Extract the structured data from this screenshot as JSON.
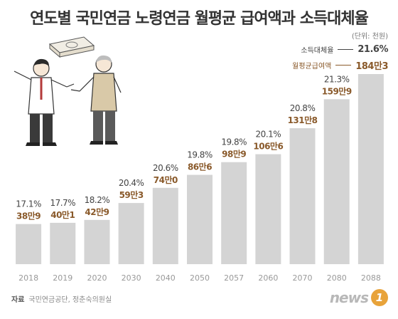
{
  "title": "연도별 국민연금 노령연금 월평균 급여액과 소득대체율",
  "unit": "(단위: 천원)",
  "legend": {
    "replacement_label": "소득대체율",
    "replacement_value": "21.6%",
    "benefit_label": "월평균급여액",
    "benefit_value": "184만3"
  },
  "source": {
    "label": "자료",
    "text": "국민연금공단, 정춘숙의원실"
  },
  "logo": {
    "text": "news",
    "badge": "1"
  },
  "colors": {
    "bar": "#d4d4d4",
    "replacement_text": "#444444",
    "benefit_text": "#8a5a2b",
    "axis_text": "#999999",
    "logo_badge": "#e8a33a"
  },
  "illustration": "two-men-talking-with-money-stack",
  "chart_data": {
    "type": "bar",
    "title": "연도별 국민연금 노령연금 월평균 급여액과 소득대체율",
    "unit": "(단위: 천원)",
    "categories": [
      "2018",
      "2019",
      "2020",
      "2030",
      "2040",
      "2050",
      "2057",
      "2060",
      "2070",
      "2080",
      "2088"
    ],
    "series": [
      {
        "name": "월평균급여액",
        "values": [
          389,
          401,
          429,
          593,
          740,
          866,
          989,
          1066,
          1318,
          1599,
          1843
        ],
        "labels": [
          "38만9",
          "40만1",
          "42만9",
          "59만3",
          "74만0",
          "86만6",
          "98만9",
          "106만6",
          "131만8",
          "159만9",
          "184만3"
        ]
      },
      {
        "name": "소득대체율",
        "values": [
          17.1,
          17.7,
          18.2,
          20.4,
          20.6,
          19.8,
          19.8,
          20.1,
          20.8,
          21.3,
          21.6
        ],
        "labels": [
          "17.1%",
          "17.7%",
          "18.2%",
          "20.4%",
          "20.6%",
          "19.8%",
          "19.8%",
          "20.1%",
          "20.8%",
          "21.3%",
          ""
        ]
      }
    ],
    "ylim": [
      0,
      1843
    ],
    "grid": false,
    "legend": "top-right"
  }
}
